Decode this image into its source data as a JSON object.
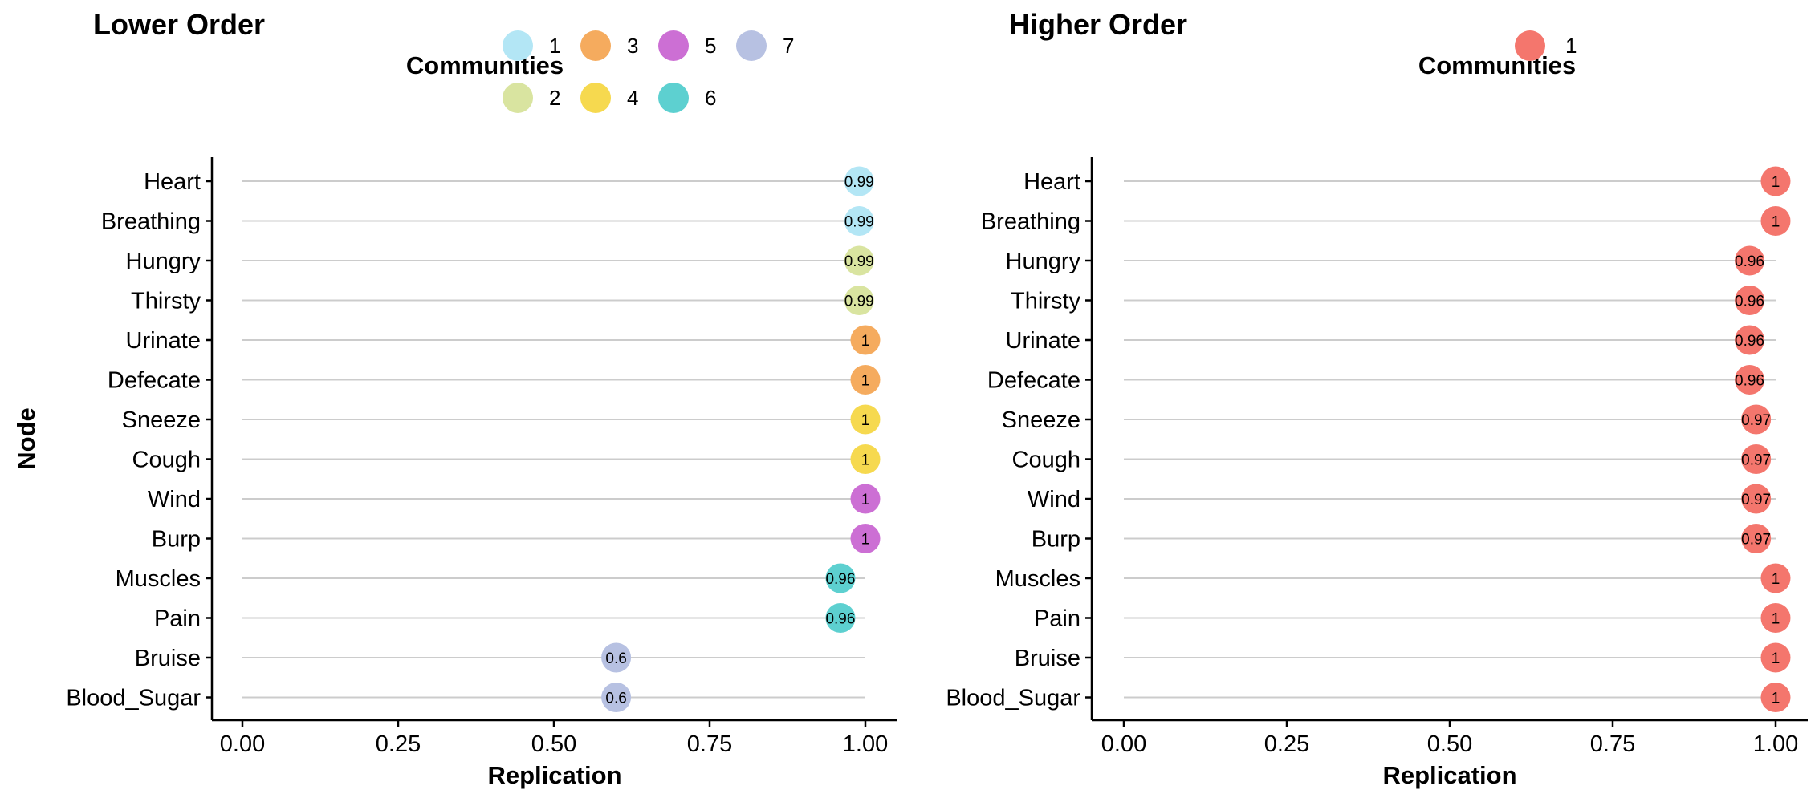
{
  "chart_data": [
    {
      "type": "scatter",
      "title": "Lower Order",
      "xlabel": "Replication",
      "ylabel": "Node",
      "xlim": [
        0,
        1
      ],
      "x_ticks": [
        "0.00",
        "0.25",
        "0.50",
        "0.75",
        "1.00"
      ],
      "grid": "horizontal",
      "legend": {
        "title": "Communities",
        "placement": "top",
        "entries": [
          {
            "label": "1",
            "color": "#b3e6f5"
          },
          {
            "label": "2",
            "color": "#d9e4a0"
          },
          {
            "label": "3",
            "color": "#f5ab5e"
          },
          {
            "label": "4",
            "color": "#f6d94f"
          },
          {
            "label": "5",
            "color": "#cc6fd4"
          },
          {
            "label": "6",
            "color": "#5dd0d0"
          },
          {
            "label": "7",
            "color": "#b7c1e2"
          }
        ]
      },
      "points": [
        {
          "node": "Heart",
          "value": 0.99,
          "label": "0.99",
          "community": "1"
        },
        {
          "node": "Breathing",
          "value": 0.99,
          "label": "0.99",
          "community": "1"
        },
        {
          "node": "Hungry",
          "value": 0.99,
          "label": "0.99",
          "community": "2"
        },
        {
          "node": "Thirsty",
          "value": 0.99,
          "label": "0.99",
          "community": "2"
        },
        {
          "node": "Urinate",
          "value": 1.0,
          "label": "1",
          "community": "3"
        },
        {
          "node": "Defecate",
          "value": 1.0,
          "label": "1",
          "community": "3"
        },
        {
          "node": "Sneeze",
          "value": 1.0,
          "label": "1",
          "community": "4"
        },
        {
          "node": "Cough",
          "value": 1.0,
          "label": "1",
          "community": "4"
        },
        {
          "node": "Wind",
          "value": 1.0,
          "label": "1",
          "community": "5"
        },
        {
          "node": "Burp",
          "value": 1.0,
          "label": "1",
          "community": "5"
        },
        {
          "node": "Muscles",
          "value": 0.96,
          "label": "0.96",
          "community": "6"
        },
        {
          "node": "Pain",
          "value": 0.96,
          "label": "0.96",
          "community": "6"
        },
        {
          "node": "Bruise",
          "value": 0.6,
          "label": "0.6",
          "community": "7"
        },
        {
          "node": "Blood_Sugar",
          "value": 0.6,
          "label": "0.6",
          "community": "7"
        }
      ]
    },
    {
      "type": "scatter",
      "title": "Higher Order",
      "xlabel": "Replication",
      "ylabel": "",
      "xlim": [
        0,
        1
      ],
      "x_ticks": [
        "0.00",
        "0.25",
        "0.50",
        "0.75",
        "1.00"
      ],
      "grid": "horizontal",
      "legend": {
        "title": "Communities",
        "placement": "top",
        "entries": [
          {
            "label": "1",
            "color": "#f4766d"
          }
        ]
      },
      "points": [
        {
          "node": "Heart",
          "value": 1.0,
          "label": "1",
          "community": "1"
        },
        {
          "node": "Breathing",
          "value": 1.0,
          "label": "1",
          "community": "1"
        },
        {
          "node": "Hungry",
          "value": 0.96,
          "label": "0.96",
          "community": "1"
        },
        {
          "node": "Thirsty",
          "value": 0.96,
          "label": "0.96",
          "community": "1"
        },
        {
          "node": "Urinate",
          "value": 0.96,
          "label": "0.96",
          "community": "1"
        },
        {
          "node": "Defecate",
          "value": 0.96,
          "label": "0.96",
          "community": "1"
        },
        {
          "node": "Sneeze",
          "value": 0.97,
          "label": "0.97",
          "community": "1"
        },
        {
          "node": "Cough",
          "value": 0.97,
          "label": "0.97",
          "community": "1"
        },
        {
          "node": "Wind",
          "value": 0.97,
          "label": "0.97",
          "community": "1"
        },
        {
          "node": "Burp",
          "value": 0.97,
          "label": "0.97",
          "community": "1"
        },
        {
          "node": "Muscles",
          "value": 1.0,
          "label": "1",
          "community": "1"
        },
        {
          "node": "Pain",
          "value": 1.0,
          "label": "1",
          "community": "1"
        },
        {
          "node": "Bruise",
          "value": 1.0,
          "label": "1",
          "community": "1"
        },
        {
          "node": "Blood_Sugar",
          "value": 1.0,
          "label": "1",
          "community": "1"
        }
      ]
    }
  ]
}
